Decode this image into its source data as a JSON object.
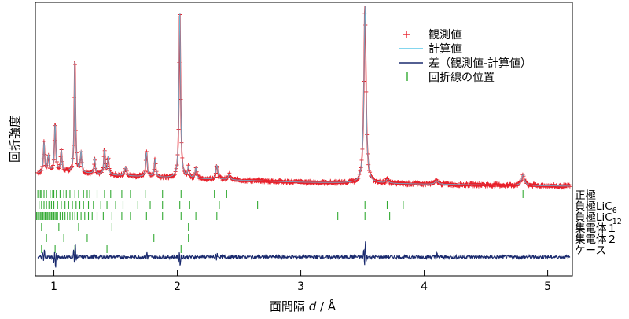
{
  "chart_data": {
    "type": "line",
    "xlabel_prefix": "面間隔 ",
    "xlabel_var": "d",
    "xlabel_suffix": " / Å",
    "ylabel": "回折強度",
    "xlim": [
      0.85,
      5.2
    ],
    "xticks": [
      1,
      2,
      3,
      4,
      5
    ],
    "yticks": [],
    "legend": {
      "placement": "top-right",
      "entries": [
        {
          "label": "観測値",
          "marker": "plus",
          "color": "#e8202a"
        },
        {
          "label": "計算値",
          "marker": "line",
          "color": "#5bc8e8"
        },
        {
          "label": "差（観測値-計算値）",
          "marker": "line",
          "color": "#1a2a6e"
        },
        {
          "label": "回折線の位置",
          "marker": "tick",
          "color": "#33aa33"
        }
      ]
    },
    "colors": {
      "observed": "#e8202a",
      "calculated": "#5bc8e8",
      "difference": "#1a2a6e",
      "reflection": "#33aa33"
    },
    "observed_background": [
      {
        "d": 0.85,
        "y": 0.07
      },
      {
        "d": 1.0,
        "y": 0.085
      },
      {
        "d": 1.5,
        "y": 0.06
      },
      {
        "d": 2.0,
        "y": 0.045
      },
      {
        "d": 3.0,
        "y": 0.022
      },
      {
        "d": 4.0,
        "y": 0.012
      },
      {
        "d": 5.2,
        "y": 0.0
      }
    ],
    "peaks": [
      {
        "d": 0.92,
        "h": 0.17,
        "w": 0.006
      },
      {
        "d": 0.955,
        "h": 0.09,
        "w": 0.006
      },
      {
        "d": 1.01,
        "h": 0.27,
        "w": 0.006
      },
      {
        "d": 1.06,
        "h": 0.12,
        "w": 0.006
      },
      {
        "d": 1.17,
        "h": 0.65,
        "w": 0.006
      },
      {
        "d": 1.22,
        "h": 0.12,
        "w": 0.006
      },
      {
        "d": 1.33,
        "h": 0.09,
        "w": 0.006
      },
      {
        "d": 1.41,
        "h": 0.14,
        "w": 0.006
      },
      {
        "d": 1.44,
        "h": 0.1,
        "w": 0.006
      },
      {
        "d": 1.58,
        "h": 0.05,
        "w": 0.008
      },
      {
        "d": 1.75,
        "h": 0.14,
        "w": 0.007
      },
      {
        "d": 1.82,
        "h": 0.1,
        "w": 0.007
      },
      {
        "d": 2.02,
        "h": 0.96,
        "w": 0.007
      },
      {
        "d": 2.09,
        "h": 0.06,
        "w": 0.007
      },
      {
        "d": 2.15,
        "h": 0.06,
        "w": 0.007
      },
      {
        "d": 2.32,
        "h": 0.08,
        "w": 0.009
      },
      {
        "d": 2.42,
        "h": 0.03,
        "w": 0.009
      },
      {
        "d": 3.52,
        "h": 1.0,
        "w": 0.01
      },
      {
        "d": 3.7,
        "h": 0.02,
        "w": 0.012
      },
      {
        "d": 4.1,
        "h": 0.02,
        "w": 0.014
      },
      {
        "d": 4.8,
        "h": 0.06,
        "w": 0.014
      }
    ],
    "reflection_rows": [
      {
        "label": "正極",
        "sub": "",
        "positions": [
          0.87,
          0.89,
          0.9,
          0.92,
          0.94,
          0.97,
          0.99,
          1.0,
          1.02,
          1.05,
          1.08,
          1.1,
          1.13,
          1.17,
          1.2,
          1.24,
          1.27,
          1.29,
          1.35,
          1.41,
          1.46,
          1.55,
          1.62,
          1.74,
          1.88,
          2.03,
          2.3,
          2.4,
          4.8
        ]
      },
      {
        "label": "負極LiC",
        "sub": "6",
        "positions": [
          0.88,
          0.9,
          0.92,
          0.94,
          0.96,
          0.98,
          1.0,
          1.03,
          1.06,
          1.09,
          1.12,
          1.15,
          1.18,
          1.21,
          1.24,
          1.28,
          1.32,
          1.38,
          1.43,
          1.5,
          1.56,
          1.68,
          1.78,
          1.88,
          2.02,
          2.1,
          2.34,
          2.65,
          3.52,
          3.7,
          3.83
        ]
      },
      {
        "label": "負極LiC",
        "sub": "12",
        "positions": [
          0.86,
          0.87,
          0.88,
          0.89,
          0.9,
          0.91,
          0.92,
          0.93,
          0.94,
          0.95,
          0.96,
          0.97,
          0.98,
          0.99,
          1.0,
          1.01,
          1.02,
          1.03,
          1.05,
          1.07,
          1.09,
          1.11,
          1.13,
          1.15,
          1.17,
          1.19,
          1.22,
          1.25,
          1.28,
          1.31,
          1.35,
          1.4,
          1.47,
          1.55,
          1.62,
          1.75,
          1.88,
          2.03,
          2.15,
          2.32,
          3.3,
          3.52,
          3.72
        ]
      },
      {
        "label": "集電体１",
        "sub": "",
        "positions": [
          0.9,
          1.04,
          1.2,
          1.47,
          2.09
        ]
      },
      {
        "label": "集電体２",
        "sub": "",
        "positions": [
          0.94,
          1.08,
          1.27,
          1.81,
          2.09
        ]
      },
      {
        "label": "ケース",
        "sub": "",
        "positions": [
          0.9,
          1.01,
          1.17,
          1.43,
          2.03
        ]
      }
    ],
    "difference_features": [
      {
        "d": 0.92,
        "a": 0.6
      },
      {
        "d": 1.01,
        "a": -1.0
      },
      {
        "d": 1.17,
        "a": 1.0
      },
      {
        "d": 1.75,
        "a": 0.4
      },
      {
        "d": 2.02,
        "a": -0.8
      },
      {
        "d": 2.32,
        "a": 0.3
      },
      {
        "d": 3.52,
        "a": 1.2
      },
      {
        "d": 4.1,
        "a": 0.25
      }
    ]
  }
}
